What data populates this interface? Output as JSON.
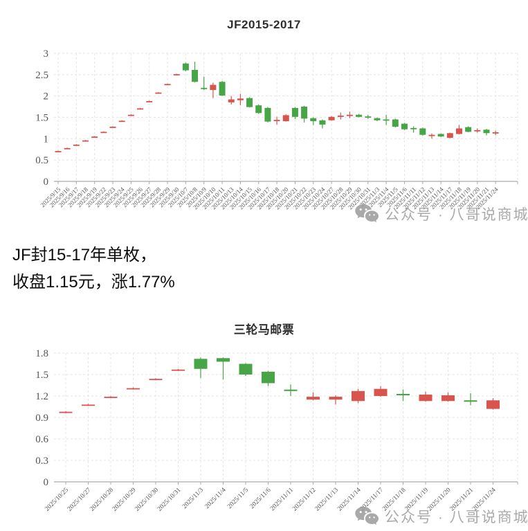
{
  "summary": {
    "line1": "JF封15-17年单枚，",
    "line2": "收盘1.15元，涨1.77%"
  },
  "watermark": {
    "icon": "wechat-icon",
    "text": "公众号 · 八哥说商城"
  },
  "colors": {
    "up": "#d9544d",
    "down": "#47a447",
    "grid": "#e4e4e4",
    "axis": "#aaaaaa",
    "tick_label": "#555555",
    "title": "#2e2e2e",
    "watermark": "#aaaaaa"
  },
  "chart_data": [
    {
      "type": "candlestick",
      "title": "JF2015-2017",
      "xlabel": "",
      "ylabel": "",
      "ylim": [
        0,
        3
      ],
      "yticks": [
        0,
        0.5,
        1,
        1.5,
        2,
        2.5,
        3
      ],
      "grid": "dashed",
      "legend": "none",
      "categories": [
        "2025/9/15",
        "2025/9/16",
        "2025/9/17",
        "2025/9/18",
        "2025/9/19",
        "2025/9/22",
        "2025/9/23",
        "2025/9/24",
        "2025/9/25",
        "2025/9/26",
        "2025/9/27",
        "2025/9/28",
        "2025/9/29",
        "2025/9/30",
        "2025/10/7",
        "2025/10/8",
        "2025/10/9",
        "2025/10/10",
        "2025/10/11",
        "2025/10/13",
        "2025/10/14",
        "2025/10/15",
        "2025/10/16",
        "2025/10/17",
        "2025/10/18",
        "2025/10/20",
        "2025/10/21",
        "2025/10/22",
        "2025/10/23",
        "2025/10/24",
        "2025/10/27",
        "2025/10/28",
        "2025/10/29",
        "2025/10/30",
        "2025/10/31",
        "2025/11/3",
        "2025/11/4",
        "2025/11/5",
        "2025/11/6",
        "2025/11/11",
        "2025/11/12",
        "2025/11/13",
        "2025/11/14",
        "2025/11/17",
        "2025/11/18",
        "2025/11/19",
        "2025/11/20",
        "2025/11/21",
        "2025/11/24"
      ],
      "candles_format": "[open, close, low, high]",
      "candles": [
        [
          0.7,
          0.71,
          0.69,
          0.72
        ],
        [
          0.77,
          0.78,
          0.76,
          0.79
        ],
        [
          0.85,
          0.86,
          0.84,
          0.87
        ],
        [
          0.95,
          0.96,
          0.94,
          0.97
        ],
        [
          1.04,
          1.05,
          1.03,
          1.06
        ],
        [
          1.15,
          1.16,
          1.14,
          1.17
        ],
        [
          1.27,
          1.28,
          1.26,
          1.29
        ],
        [
          1.41,
          1.42,
          1.4,
          1.43
        ],
        [
          1.55,
          1.56,
          1.54,
          1.57
        ],
        [
          1.7,
          1.71,
          1.69,
          1.72
        ],
        [
          1.87,
          1.88,
          1.86,
          1.89
        ],
        [
          2.07,
          2.08,
          2.06,
          2.09
        ],
        [
          2.27,
          2.28,
          2.26,
          2.29
        ],
        [
          2.5,
          2.51,
          2.49,
          2.52
        ],
        [
          2.76,
          2.6,
          2.58,
          2.78
        ],
        [
          2.61,
          2.33,
          2.32,
          2.8
        ],
        [
          2.19,
          2.16,
          2.14,
          2.45
        ],
        [
          2.14,
          2.26,
          1.95,
          2.31
        ],
        [
          2.33,
          2.01,
          2.0,
          2.35
        ],
        [
          1.85,
          1.92,
          1.8,
          2.0
        ],
        [
          1.9,
          1.94,
          1.78,
          2.05
        ],
        [
          1.95,
          1.74,
          1.73,
          1.97
        ],
        [
          1.78,
          1.6,
          1.58,
          1.8
        ],
        [
          1.72,
          1.4,
          1.38,
          1.74
        ],
        [
          1.42,
          1.44,
          1.33,
          1.51
        ],
        [
          1.41,
          1.55,
          1.4,
          1.57
        ],
        [
          1.72,
          1.51,
          1.46,
          1.74
        ],
        [
          1.75,
          1.47,
          1.38,
          1.77
        ],
        [
          1.48,
          1.41,
          1.32,
          1.5
        ],
        [
          1.43,
          1.33,
          1.24,
          1.45
        ],
        [
          1.43,
          1.51,
          1.42,
          1.53
        ],
        [
          1.51,
          1.54,
          1.45,
          1.61
        ],
        [
          1.53,
          1.56,
          1.48,
          1.63
        ],
        [
          1.56,
          1.51,
          1.5,
          1.58
        ],
        [
          1.52,
          1.5,
          1.46,
          1.56
        ],
        [
          1.48,
          1.43,
          1.41,
          1.5
        ],
        [
          1.45,
          1.43,
          1.32,
          1.56
        ],
        [
          1.45,
          1.28,
          1.26,
          1.47
        ],
        [
          1.35,
          1.22,
          1.2,
          1.37
        ],
        [
          1.25,
          1.23,
          1.14,
          1.29
        ],
        [
          1.24,
          1.09,
          1.07,
          1.26
        ],
        [
          1.07,
          1.09,
          1.0,
          1.12
        ],
        [
          1.11,
          1.05,
          1.04,
          1.12
        ],
        [
          1.02,
          1.13,
          1.01,
          1.14
        ],
        [
          1.11,
          1.24,
          1.1,
          1.32
        ],
        [
          1.27,
          1.16,
          1.15,
          1.29
        ],
        [
          1.18,
          1.2,
          1.14,
          1.24
        ],
        [
          1.21,
          1.13,
          1.08,
          1.23
        ],
        [
          1.13,
          1.15,
          1.08,
          1.19
        ]
      ]
    },
    {
      "type": "candlestick",
      "title": "三轮马邮票",
      "xlabel": "",
      "ylabel": "",
      "ylim": [
        0,
        1.8
      ],
      "yticks": [
        0,
        0.3,
        0.6,
        0.9,
        1.2,
        1.5,
        1.8
      ],
      "grid": "dashed",
      "legend": "none",
      "categories": [
        "2025/10/25",
        "2025/10/27",
        "2025/10/28",
        "2025/10/29",
        "2025/10/30",
        "2025/10/31",
        "2025/11/3",
        "2025/11/4",
        "2025/11/5",
        "2025/11/6",
        "2025/11/11",
        "2025/11/12",
        "2025/11/13",
        "2025/11/14",
        "2025/11/17",
        "2025/11/18",
        "2025/11/19",
        "2025/11/20",
        "2025/11/21",
        "2025/11/24"
      ],
      "candles_format": "[open, close, low, high]",
      "candles": [
        [
          0.97,
          0.98,
          0.96,
          0.99
        ],
        [
          1.07,
          1.08,
          1.06,
          1.09
        ],
        [
          1.18,
          1.19,
          1.17,
          1.2
        ],
        [
          1.3,
          1.31,
          1.29,
          1.32
        ],
        [
          1.43,
          1.44,
          1.42,
          1.45
        ],
        [
          1.56,
          1.57,
          1.55,
          1.58
        ],
        [
          1.72,
          1.58,
          1.45,
          1.74
        ],
        [
          1.73,
          1.68,
          1.43,
          1.74
        ],
        [
          1.65,
          1.5,
          1.48,
          1.66
        ],
        [
          1.54,
          1.38,
          1.34,
          1.55
        ],
        [
          1.29,
          1.27,
          1.2,
          1.36
        ],
        [
          1.15,
          1.19,
          1.14,
          1.25
        ],
        [
          1.15,
          1.19,
          1.08,
          1.21
        ],
        [
          1.13,
          1.27,
          1.1,
          1.3
        ],
        [
          1.2,
          1.3,
          1.19,
          1.34
        ],
        [
          1.23,
          1.21,
          1.13,
          1.29
        ],
        [
          1.13,
          1.22,
          1.12,
          1.26
        ],
        [
          1.13,
          1.21,
          1.12,
          1.25
        ],
        [
          1.14,
          1.12,
          1.07,
          1.24
        ],
        [
          1.02,
          1.14,
          1.01,
          1.17
        ]
      ]
    }
  ]
}
